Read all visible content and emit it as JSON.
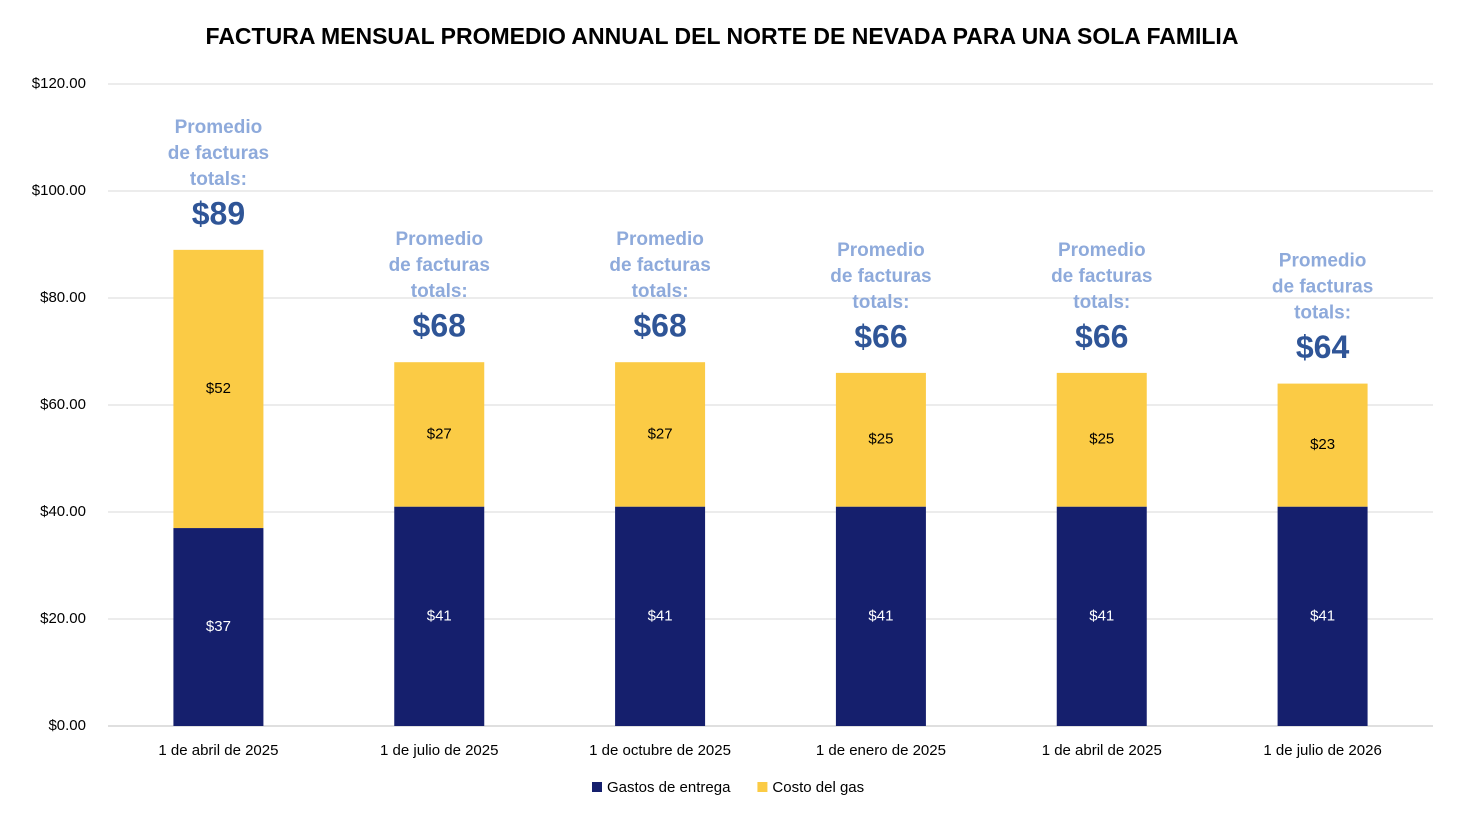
{
  "chart_data": {
    "type": "stacked_bar",
    "title": "FACTURA MENSUAL PROMEDIO ANNUAL DEL NORTE DE NEVADA PARA UNA SOLA FAMILIA",
    "categories": [
      "1 de abril de 2025",
      "1 de julio de 2025",
      "1 de octubre de 2025",
      "1 de enero de 2025",
      "1 de abril de 2025",
      "1 de julio de 2026"
    ],
    "series": [
      {
        "name": "Gastos de entrega",
        "color": "#151f6d",
        "values": [
          37,
          41,
          41,
          41,
          41,
          41
        ],
        "value_labels": [
          "$37",
          "$41",
          "$41",
          "$41",
          "$41",
          "$41"
        ]
      },
      {
        "name": "Costo del gas",
        "color": "#fbcb45",
        "values": [
          52,
          27,
          27,
          25,
          25,
          23
        ],
        "value_labels": [
          "$52",
          "$27",
          "$27",
          "$25",
          "$25",
          "$23"
        ]
      }
    ],
    "annotations": [
      {
        "lines": [
          "Promedio",
          "de facturas",
          "totals:"
        ],
        "total": "$89"
      },
      {
        "lines": [
          "Promedio",
          "de facturas",
          "totals:"
        ],
        "total": "$68"
      },
      {
        "lines": [
          "Promedio",
          "de facturas",
          "totals:"
        ],
        "total": "$68"
      },
      {
        "lines": [
          "Promedio",
          "de facturas",
          "totals:"
        ],
        "total": "$66"
      },
      {
        "lines": [
          "Promedio",
          "de facturas",
          "totals:"
        ],
        "total": "$66"
      },
      {
        "lines": [
          "Promedio",
          "de facturas",
          "totals:"
        ],
        "total": "$64"
      }
    ],
    "ylim": [
      0,
      120
    ],
    "yticks": [
      {
        "value": 0,
        "label": "$0.00"
      },
      {
        "value": 20,
        "label": "$20.00"
      },
      {
        "value": 40,
        "label": "$40.00"
      },
      {
        "value": 60,
        "label": "$60.00"
      },
      {
        "value": 80,
        "label": "$80.00"
      },
      {
        "value": 100,
        "label": "$100.00"
      },
      {
        "value": 120,
        "label": "$120.00"
      }
    ],
    "grid": true,
    "legend": "bottom"
  }
}
